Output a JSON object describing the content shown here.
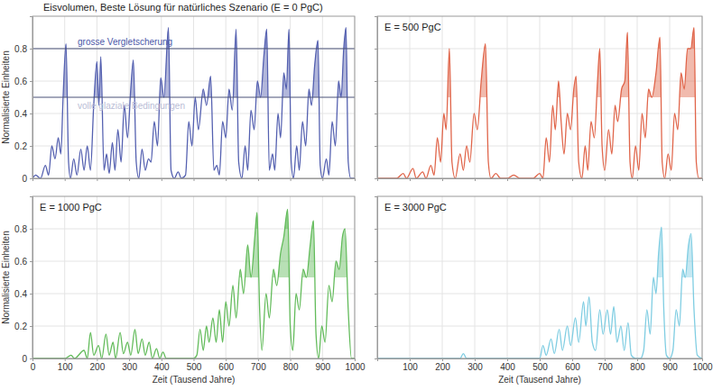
{
  "chart_data": [
    {
      "type": "line",
      "title": "Eisvolumen, Beste Lösung für natürliches Szenario (E = 0 PgC)",
      "ylabel": "Normalisierte Einheiten",
      "x": [
        0,
        10,
        25,
        40,
        50,
        60,
        70,
        80,
        88,
        95,
        104,
        112,
        118,
        128,
        138,
        150,
        160,
        170,
        180,
        190,
        200,
        206,
        212,
        222,
        230,
        238,
        248,
        256,
        265,
        275,
        285,
        295,
        305,
        313,
        322,
        330,
        340,
        350,
        360,
        368,
        378,
        388,
        398,
        408,
        422,
        430,
        440,
        452,
        462,
        475,
        485,
        495,
        505,
        515,
        530,
        540,
        553,
        563,
        572,
        580,
        590,
        600,
        610,
        620,
        632,
        640,
        650,
        660,
        668,
        678,
        688,
        698,
        708,
        718,
        727,
        735,
        745,
        752,
        762,
        770,
        780,
        788,
        796,
        803,
        810,
        820,
        828,
        838,
        848,
        858,
        866,
        876,
        886,
        893,
        900,
        912,
        920,
        930,
        940,
        950,
        958,
        966,
        973,
        980,
        988,
        1000
      ],
      "series": [
        {
          "color": "#5460b0",
          "values": [
            0,
            0.02,
            0,
            0.08,
            0.02,
            0.2,
            0.12,
            0.25,
            0.15,
            0.5,
            0.83,
            0.1,
            0,
            0.12,
            0.02,
            0.18,
            0.05,
            0.2,
            0.05,
            0.45,
            0.72,
            0.45,
            0.75,
            0.05,
            0.15,
            0.03,
            0.22,
            0.05,
            0.3,
            0.1,
            0.45,
            0.25,
            0.55,
            0.73,
            0.1,
            0,
            0.18,
            0.05,
            0.12,
            0.1,
            0.35,
            0.2,
            0.62,
            0.5,
            0.93,
            0.05,
            0,
            0.04,
            0,
            0.02,
            0.35,
            0.2,
            0.5,
            0.3,
            0.55,
            0.45,
            0.63,
            0.05,
            0.08,
            0.02,
            0.35,
            0.25,
            0.55,
            0.42,
            0.92,
            0.1,
            0,
            0.2,
            0.05,
            0.42,
            0.3,
            0.6,
            0.5,
            0.75,
            0.92,
            0.05,
            0.15,
            0.05,
            0.4,
            0.25,
            0.65,
            0.55,
            0.92,
            0.1,
            0,
            0.2,
            0.05,
            0.35,
            0.2,
            0.55,
            0.45,
            0.7,
            0.85,
            0.08,
            0,
            0.12,
            0.02,
            0.35,
            0.2,
            0.6,
            0.5,
            0.8,
            0.93,
            0.1,
            0,
            0
          ]
        }
      ],
      "annotations": [
        {
          "y": 0.8,
          "label": "grosse Vergletscherung"
        },
        {
          "y": 0.5,
          "label": "volle glaziale Bedingungen"
        }
      ],
      "xlim": [
        0,
        1000
      ],
      "ylim": [
        0,
        1
      ],
      "xticks": [
        0,
        100,
        200,
        300,
        400,
        500,
        600,
        700,
        800,
        900,
        1000
      ],
      "yticks": [
        0,
        0.2,
        0.4,
        0.6,
        0.8
      ],
      "grid": true,
      "tick_labels": "y"
    },
    {
      "type": "line",
      "title": "E = 500 PgC",
      "x": [
        0,
        60,
        80,
        90,
        110,
        120,
        140,
        150,
        165,
        175,
        185,
        195,
        205,
        212,
        222,
        230,
        240,
        255,
        265,
        275,
        285,
        298,
        308,
        320,
        333,
        342,
        350,
        365,
        380,
        400,
        420,
        440,
        480,
        500,
        510,
        520,
        530,
        540,
        548,
        558,
        566,
        575,
        585,
        595,
        605,
        612,
        620,
        630,
        640,
        648,
        658,
        668,
        678,
        685,
        692,
        700,
        712,
        722,
        732,
        740,
        752,
        762,
        770,
        778,
        785,
        795,
        805,
        815,
        825,
        835,
        845,
        858,
        870,
        877,
        885,
        895,
        905,
        915,
        925,
        935,
        945,
        955,
        965,
        975,
        982,
        990,
        1000
      ],
      "series": [
        {
          "color": "#e0654a",
          "values": [
            0,
            0,
            0.03,
            0,
            0.06,
            0,
            0.04,
            0,
            0.08,
            0.02,
            0.25,
            0.1,
            0.4,
            0.3,
            0.8,
            0.1,
            0,
            0.15,
            0.05,
            0.2,
            0.1,
            0.4,
            0.3,
            0.6,
            0.83,
            0.1,
            0,
            0.03,
            0,
            0,
            0.02,
            0,
            0,
            0.03,
            0,
            0.25,
            0.1,
            0.45,
            0.3,
            0.6,
            0.35,
            0.15,
            0.4,
            0.3,
            0.55,
            0.63,
            0.1,
            0,
            0.2,
            0.05,
            0.35,
            0.25,
            0.6,
            0.8,
            0.2,
            0.05,
            0.3,
            0.15,
            0.45,
            0.35,
            0.55,
            0.6,
            0.9,
            0.1,
            0,
            0.2,
            0.05,
            0.4,
            0.25,
            0.55,
            0.5,
            0.65,
            0.87,
            0.1,
            0,
            0.15,
            0.05,
            0.4,
            0.3,
            0.65,
            0.55,
            0.8,
            0.8,
            0.93,
            0.1,
            0,
            0
          ]
        }
      ],
      "levels": [
        0.5,
        0.8
      ],
      "xlim": [
        0,
        1000
      ],
      "ylim": [
        0,
        1
      ],
      "xticks": [
        0,
        100,
        200,
        300,
        400,
        500,
        600,
        700,
        800,
        900,
        1000
      ],
      "yticks": [
        0,
        0.2,
        0.4,
        0.6,
        0.8
      ],
      "grid": true,
      "tick_labels": false
    },
    {
      "type": "line",
      "title": "E = 1000 PgC",
      "xlabel": "Zeit (Tausend Jahre)",
      "ylabel": "Normalisierte Einheiten",
      "x": [
        0,
        100,
        120,
        130,
        160,
        170,
        180,
        190,
        205,
        215,
        228,
        238,
        250,
        258,
        272,
        282,
        295,
        305,
        318,
        328,
        340,
        350,
        362,
        372,
        385,
        395,
        405,
        415,
        500,
        510,
        520,
        530,
        540,
        548,
        560,
        570,
        580,
        590,
        600,
        610,
        622,
        632,
        645,
        655,
        668,
        678,
        690,
        697,
        705,
        712,
        725,
        735,
        748,
        758,
        770,
        780,
        792,
        800,
        808,
        818,
        828,
        840,
        850,
        862,
        872,
        880,
        888,
        898,
        908,
        920,
        930,
        942,
        952,
        962,
        970,
        980,
        990,
        1000
      ],
      "series": [
        {
          "color": "#62bb5a",
          "values": [
            0,
            0,
            0.02,
            0,
            0.05,
            0,
            0.16,
            0.02,
            0.08,
            0,
            0.15,
            0.02,
            0.1,
            0,
            0.16,
            0.03,
            0.1,
            0.02,
            0.18,
            0.03,
            0.12,
            0.02,
            0.1,
            0,
            0.06,
            0,
            0.04,
            0,
            0,
            0.02,
            0.18,
            0.05,
            0.2,
            0.1,
            0.25,
            0.1,
            0.3,
            0.1,
            0.35,
            0.2,
            0.45,
            0.25,
            0.55,
            0.4,
            0.7,
            0.5,
            0.75,
            0.9,
            0.3,
            0.05,
            0.4,
            0.25,
            0.55,
            0.45,
            0.65,
            0.75,
            0.92,
            0.2,
            0.05,
            0.4,
            0.3,
            0.55,
            0.5,
            0.7,
            0.85,
            0.15,
            0,
            0.2,
            0.1,
            0.45,
            0.35,
            0.6,
            0.55,
            0.75,
            0.8,
            0.3,
            0,
            0
          ]
        }
      ],
      "levels": [
        0.5,
        0.8
      ],
      "xlim": [
        0,
        1000
      ],
      "ylim": [
        0,
        1
      ],
      "xticks": [
        0,
        100,
        200,
        300,
        400,
        500,
        600,
        700,
        800,
        900,
        1000
      ],
      "yticks": [
        0,
        0.2,
        0.4,
        0.6,
        0.8
      ],
      "grid": true
    },
    {
      "type": "line",
      "title": "E = 3000 PgC",
      "xlabel": "Zeit (Tausend Jahre)",
      "x": [
        0,
        255,
        265,
        275,
        500,
        510,
        520,
        535,
        545,
        560,
        570,
        585,
        595,
        610,
        620,
        635,
        642,
        652,
        662,
        672,
        685,
        695,
        708,
        718,
        728,
        738,
        750,
        760,
        772,
        782,
        795,
        810,
        820,
        830,
        840,
        850,
        858,
        866,
        875,
        882,
        890,
        900,
        910,
        920,
        930,
        940,
        948,
        958,
        966,
        975,
        985,
        1000
      ],
      "series": [
        {
          "color": "#7fcde2",
          "values": [
            0,
            0,
            0.03,
            0,
            0,
            0.08,
            0.02,
            0.12,
            0.03,
            0.18,
            0.05,
            0.2,
            0.08,
            0.25,
            0.1,
            0.35,
            0.2,
            0.38,
            0.1,
            0.05,
            0.3,
            0.15,
            0.3,
            0.15,
            0.32,
            0.1,
            0.2,
            0.05,
            0.22,
            0.02,
            0,
            0,
            0.05,
            0.3,
            0.15,
            0.5,
            0.4,
            0.65,
            0.81,
            0.3,
            0.02,
            0,
            0.05,
            0.3,
            0.2,
            0.55,
            0.5,
            0.7,
            0.77,
            0.3,
            0.02,
            0
          ]
        }
      ],
      "levels": [
        0.5,
        0.8
      ],
      "xlim": [
        0,
        1000
      ],
      "ylim": [
        0,
        1
      ],
      "xticks": [
        100,
        200,
        300,
        400,
        500,
        600,
        700,
        800,
        900,
        1000
      ],
      "yticks": [
        0,
        0.2,
        0.4,
        0.6,
        0.8
      ],
      "grid": true,
      "tick_labels": "x"
    }
  ]
}
